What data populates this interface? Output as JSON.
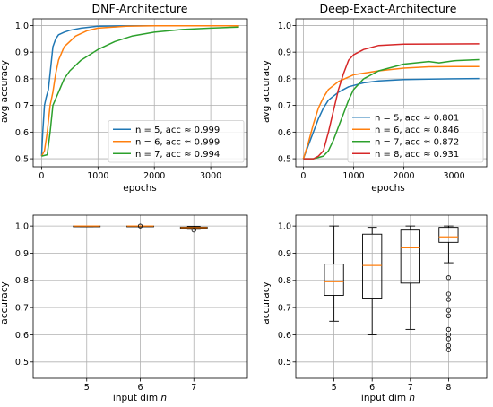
{
  "chart_data": [
    {
      "type": "line",
      "title": "DNF-Architecture",
      "xlabel": "epochs",
      "ylabel": "avg accuracy",
      "xlim": [
        -150,
        3650
      ],
      "ylim": [
        0.47,
        1.025
      ],
      "xticks": [
        0,
        1000,
        2000,
        3000
      ],
      "yticks": [
        0.5,
        0.6,
        0.7,
        0.8,
        0.9,
        1.0
      ],
      "grid": true,
      "legend_position": "lower-right",
      "series": [
        {
          "name": "n = 5, acc ≈ 0.999",
          "color": "#1f77b4",
          "x": [
            0,
            20,
            50,
            80,
            120,
            160,
            200,
            250,
            300,
            400,
            500,
            700,
            1000,
            1500,
            2000,
            3500
          ],
          "y": [
            0.51,
            0.6,
            0.7,
            0.73,
            0.76,
            0.84,
            0.92,
            0.95,
            0.965,
            0.975,
            0.982,
            0.99,
            0.997,
            0.999,
            0.999,
            0.999
          ]
        },
        {
          "name": "n = 6, acc ≈ 0.999",
          "color": "#ff7f0e",
          "x": [
            0,
            50,
            100,
            150,
            200,
            250,
            300,
            400,
            500,
            600,
            800,
            1000,
            1500,
            2000,
            3500
          ],
          "y": [
            0.51,
            0.53,
            0.6,
            0.7,
            0.75,
            0.82,
            0.87,
            0.92,
            0.94,
            0.96,
            0.98,
            0.99,
            0.997,
            0.999,
            0.999
          ]
        },
        {
          "name": "n = 7, acc ≈ 0.994",
          "color": "#2ca02c",
          "x": [
            0,
            100,
            150,
            200,
            300,
            400,
            500,
            700,
            1000,
            1300,
            1600,
            2000,
            2500,
            3000,
            3500
          ],
          "y": [
            0.51,
            0.515,
            0.6,
            0.7,
            0.75,
            0.8,
            0.83,
            0.87,
            0.91,
            0.94,
            0.96,
            0.975,
            0.985,
            0.99,
            0.994
          ]
        }
      ]
    },
    {
      "type": "line",
      "title": "Deep-Exact-Architecture",
      "xlabel": "epochs",
      "ylabel": "avg accuracy",
      "xlim": [
        -150,
        3650
      ],
      "ylim": [
        0.47,
        1.025
      ],
      "xticks": [
        0,
        1000,
        2000,
        3000
      ],
      "yticks": [
        0.5,
        0.6,
        0.7,
        0.8,
        0.9,
        1.0
      ],
      "grid": true,
      "legend_position": "lower-right",
      "series": [
        {
          "name": "n = 5, acc ≈ 0.801",
          "color": "#1f77b4",
          "x": [
            0,
            100,
            200,
            300,
            400,
            500,
            700,
            900,
            1200,
            1500,
            2000,
            2500,
            3000,
            3500
          ],
          "y": [
            0.5,
            0.55,
            0.6,
            0.65,
            0.69,
            0.72,
            0.75,
            0.77,
            0.785,
            0.792,
            0.797,
            0.799,
            0.8,
            0.801
          ]
        },
        {
          "name": "n = 6, acc ≈ 0.846",
          "color": "#ff7f0e",
          "x": [
            0,
            100,
            200,
            300,
            400,
            500,
            700,
            1000,
            1500,
            2000,
            2500,
            3000,
            3500
          ],
          "y": [
            0.5,
            0.56,
            0.63,
            0.69,
            0.73,
            0.76,
            0.79,
            0.815,
            0.83,
            0.84,
            0.845,
            0.846,
            0.846
          ]
        },
        {
          "name": "n = 7, acc ≈ 0.872",
          "color": "#2ca02c",
          "x": [
            0,
            200,
            400,
            500,
            600,
            700,
            800,
            900,
            1000,
            1200,
            1500,
            2000,
            2500,
            2700,
            3000,
            3500
          ],
          "y": [
            0.5,
            0.5,
            0.51,
            0.53,
            0.57,
            0.62,
            0.67,
            0.72,
            0.76,
            0.8,
            0.83,
            0.855,
            0.865,
            0.86,
            0.868,
            0.872
          ]
        },
        {
          "name": "n = 8, acc ≈ 0.931",
          "color": "#d62728",
          "x": [
            0,
            200,
            300,
            400,
            500,
            600,
            700,
            800,
            900,
            1000,
            1200,
            1500,
            2000,
            3500
          ],
          "y": [
            0.5,
            0.5,
            0.51,
            0.53,
            0.6,
            0.68,
            0.76,
            0.82,
            0.87,
            0.89,
            0.91,
            0.925,
            0.93,
            0.931
          ]
        }
      ]
    },
    {
      "type": "box",
      "title": "",
      "xlabel": "input dim n",
      "ylabel": "accuracy",
      "categories": [
        "5",
        "6",
        "7"
      ],
      "ylim": [
        0.44,
        1.04
      ],
      "yticks": [
        0.5,
        0.6,
        0.7,
        0.8,
        0.9,
        1.0
      ],
      "grid": true,
      "boxes": [
        {
          "label": "5",
          "whislo": 0.998,
          "q1": 0.999,
          "med": 1.0,
          "q3": 1.0,
          "whishi": 1.0,
          "fliers": []
        },
        {
          "label": "6",
          "whislo": 1.0,
          "q1": 1.0,
          "med": 1.0,
          "q3": 1.0,
          "whishi": 1.0,
          "fliers": [
            1.0
          ]
        },
        {
          "label": "7",
          "whislo": 0.988,
          "q1": 0.991,
          "med": 0.994,
          "q3": 0.996,
          "whishi": 0.999,
          "fliers": [
            0.985
          ]
        }
      ]
    },
    {
      "type": "box",
      "title": "",
      "xlabel": "input dim n",
      "ylabel": "accuracy",
      "categories": [
        "5",
        "6",
        "7",
        "8"
      ],
      "ylim": [
        0.44,
        1.04
      ],
      "yticks": [
        0.5,
        0.6,
        0.7,
        0.8,
        0.9,
        1.0
      ],
      "grid": true,
      "boxes": [
        {
          "label": "5",
          "whislo": 0.65,
          "q1": 0.745,
          "med": 0.795,
          "q3": 0.86,
          "whishi": 1.0,
          "fliers": []
        },
        {
          "label": "6",
          "whislo": 0.6,
          "q1": 0.735,
          "med": 0.855,
          "q3": 0.97,
          "whishi": 0.995,
          "fliers": []
        },
        {
          "label": "7",
          "whislo": 0.62,
          "q1": 0.79,
          "med": 0.92,
          "q3": 0.985,
          "whishi": 1.0,
          "fliers": []
        },
        {
          "label": "8",
          "whislo": 0.865,
          "q1": 0.94,
          "med": 0.96,
          "q3": 0.995,
          "whishi": 1.0,
          "fliers": [
            0.81,
            0.75,
            0.73,
            0.69,
            0.67,
            0.62,
            0.6,
            0.585,
            0.56,
            0.545
          ]
        }
      ]
    }
  ]
}
